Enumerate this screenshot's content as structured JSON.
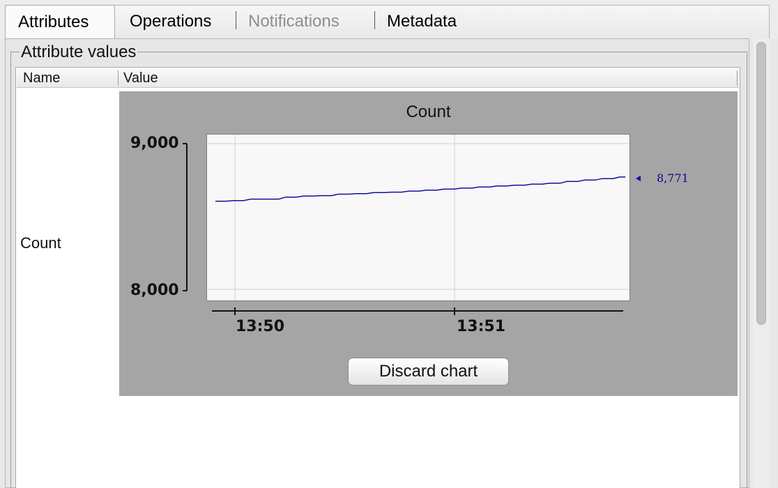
{
  "tabs": [
    {
      "label": "Attributes",
      "state": "selected"
    },
    {
      "label": "Operations",
      "state": "normal"
    },
    {
      "label": "Notifications",
      "state": "disabled"
    },
    {
      "label": "Metadata",
      "state": "normal"
    }
  ],
  "group": {
    "title": "Attribute values"
  },
  "table": {
    "columns": [
      "Name",
      "Value"
    ],
    "rows": [
      {
        "name": "Count"
      }
    ]
  },
  "chart": {
    "discard_label": "Discard chart"
  },
  "chart_data": {
    "type": "line",
    "title": "Count",
    "xlabel": "",
    "ylabel": "",
    "ylim": [
      8000,
      9000
    ],
    "xlim": [
      "13:49:53",
      "13:51:50"
    ],
    "y_ticks": [
      "9,000",
      "8,000"
    ],
    "x_ticks": [
      "13:50",
      "13:51"
    ],
    "grid": true,
    "series": [
      {
        "color": "#1010a0",
        "x": [
          "13:49:54",
          "13:49:59",
          "13:50:04",
          "13:50:09",
          "13:50:14",
          "13:50:19",
          "13:50:24",
          "13:50:29",
          "13:50:34",
          "13:50:39",
          "13:50:44",
          "13:50:49",
          "13:50:54",
          "13:50:59",
          "13:51:04",
          "13:51:09",
          "13:51:14",
          "13:51:19",
          "13:51:24",
          "13:51:29",
          "13:51:34",
          "13:51:39",
          "13:51:44",
          "13:51:49"
        ],
        "values": [
          8605,
          8609,
          8619,
          8619,
          8633,
          8640,
          8643,
          8653,
          8657,
          8664,
          8667,
          8674,
          8681,
          8688,
          8695,
          8702,
          8709,
          8715,
          8722,
          8728,
          8740,
          8750,
          8760,
          8771
        ]
      }
    ],
    "last_value_label": "8,771"
  }
}
